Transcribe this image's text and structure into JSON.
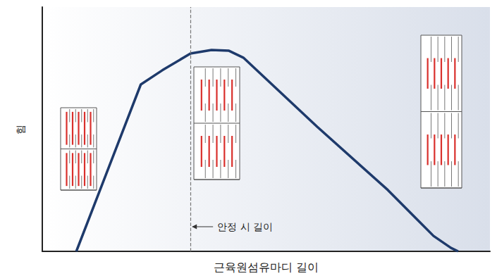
{
  "chart_data": {
    "type": "line",
    "x_label": "근육원섬유마디 길이",
    "y_label": "힘",
    "x": [
      7.6,
      22.0,
      26.8,
      33.1,
      37.8,
      41.7,
      44.9,
      61.4,
      77.2,
      83.5,
      87.4,
      91.3,
      92.9
    ],
    "values": [
      0,
      68.3,
      74.1,
      81.0,
      82.4,
      82.1,
      79.3,
      51.0,
      25.1,
      13.5,
      6.3,
      1.4,
      0
    ],
    "color": "#1e3a6b",
    "xlim": [
      0,
      100
    ],
    "ylim": [
      0,
      100
    ],
    "xticks": [],
    "yticks": [],
    "tick_labels": false,
    "grid": false,
    "annotation": {
      "text": "안정 시 길이",
      "x": 33.1,
      "line_style": "dashed"
    }
  }
}
